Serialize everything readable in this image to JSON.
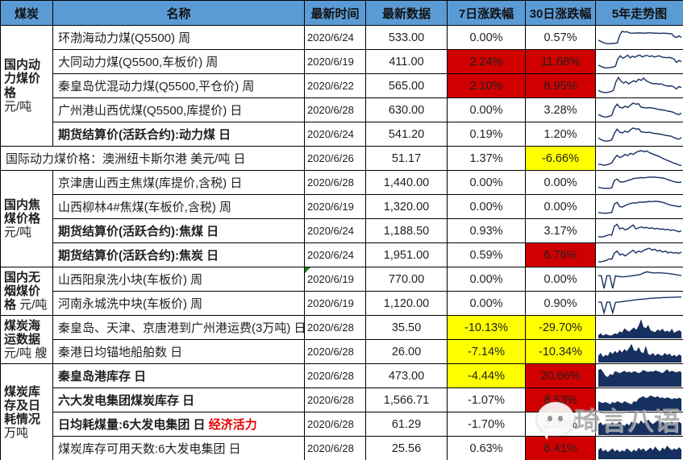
{
  "header": {
    "columns": [
      "煤炭",
      "名称",
      "最新时间",
      "最新数据",
      "7日涨跌幅",
      "30日涨跌幅",
      "5年走势图"
    ]
  },
  "colors": {
    "header_bg": "#5B9BD5",
    "red": "#D10000",
    "yellow": "#FFFF00",
    "spark": "#16305F",
    "note_red": "#E60000",
    "flag_green": "#1E7E1E",
    "watermark_gray": "#8C8C8C"
  },
  "categories": [
    {
      "title": "国内动力煤价格",
      "unit": "元/吨"
    },
    {
      "title": "国内焦煤价格",
      "unit": "元/吨"
    },
    {
      "title": "国内无烟煤价格",
      "unit": "元/吨"
    },
    {
      "title": "煤炭海运数据",
      "unit": "元/吨 艘"
    },
    {
      "title": "煤炭库存及日耗情况",
      "unit": "万吨"
    }
  ],
  "watermark": {
    "text": "琦言八语",
    "icon": "wechat-bubble-icon"
  },
  "rows": [
    {
      "name": "环渤海动力煤(Q5500) 周",
      "bold": false,
      "date": "2020/6/24",
      "value": "533.00",
      "d7": "0.00%",
      "d30": "0.57%",
      "spark": {
        "type": "line",
        "v": [
          0.38,
          0.32,
          0.26,
          0.22,
          0.2,
          0.2,
          0.21,
          0.22,
          0.24,
          0.62,
          0.84,
          0.8,
          0.82,
          0.76,
          0.74,
          0.74,
          0.75,
          0.76,
          0.75,
          0.74,
          0.75,
          0.76,
          0.76,
          0.75,
          0.74,
          0.74,
          0.73,
          0.74,
          0.74,
          0.73,
          0.72,
          0.7,
          0.56,
          0.52,
          0.6,
          0.52
        ]
      }
    },
    {
      "name": "大同动力煤(Q5500,车板价) 周",
      "bold": false,
      "date": "2020/6/19",
      "value": "411.00",
      "d7": "2.24%",
      "d7bg": "red",
      "d30": "11.68%",
      "d30bg": "red",
      "spark": {
        "type": "line",
        "v": [
          0.34,
          0.28,
          0.22,
          0.2,
          0.2,
          0.22,
          0.24,
          0.28,
          0.66,
          0.82,
          0.7,
          0.76,
          0.86,
          0.72,
          0.8,
          0.74,
          0.82,
          0.86,
          0.76,
          0.82,
          0.84,
          0.78,
          0.82,
          0.76,
          0.8,
          0.82,
          0.76,
          0.74,
          0.72,
          0.74,
          0.7,
          0.66,
          0.48,
          0.58,
          0.52
        ]
      }
    },
    {
      "name": "秦皇岛优混动力煤(Q5500,平仓价) 周",
      "bold": false,
      "date": "2020/6/22",
      "value": "565.00",
      "d7": "2.10%",
      "d7bg": "red",
      "d30": "8.95%",
      "d30bg": "red",
      "spark": {
        "type": "line",
        "v": [
          0.28,
          0.22,
          0.18,
          0.17,
          0.19,
          0.22,
          0.28,
          0.72,
          0.95,
          0.76,
          0.66,
          0.74,
          0.62,
          0.7,
          0.78,
          0.72,
          0.86,
          0.8,
          0.92,
          0.78,
          0.72,
          0.66,
          0.62,
          0.64,
          0.6,
          0.62,
          0.56,
          0.52,
          0.5,
          0.52,
          0.46,
          0.36,
          0.48,
          0.42
        ]
      }
    },
    {
      "name": "广州港山西优煤(Q5500,库提价) 日",
      "bold": false,
      "date": "2020/6/28",
      "value": "630.00",
      "d7": "0.00%",
      "d30": "3.28%",
      "spark": {
        "type": "line",
        "v": [
          0.28,
          0.22,
          0.17,
          0.16,
          0.19,
          0.24,
          0.62,
          0.82,
          0.66,
          0.62,
          0.72,
          0.64,
          0.78,
          0.88,
          0.82,
          0.84,
          0.66,
          0.64,
          0.62,
          0.64,
          0.62,
          0.6,
          0.56,
          0.54,
          0.52,
          0.5,
          0.46,
          0.44,
          0.4,
          0.32,
          0.28,
          0.36
        ]
      }
    },
    {
      "name": "期货结算价(活跃合约):动力煤 日",
      "bold": true,
      "date": "2020/6/24",
      "value": "541.20",
      "d7": "0.19%",
      "d30": "1.20%",
      "spark": {
        "type": "line",
        "v": [
          0.32,
          0.24,
          0.18,
          0.16,
          0.18,
          0.22,
          0.56,
          0.78,
          0.62,
          0.58,
          0.68,
          0.62,
          0.74,
          0.84,
          0.78,
          0.8,
          0.64,
          0.62,
          0.6,
          0.62,
          0.58,
          0.56,
          0.54,
          0.52,
          0.5,
          0.46,
          0.44,
          0.42,
          0.36,
          0.3,
          0.26,
          0.34
        ]
      }
    },
    {
      "name": "国际动力煤价格：澳洲纽卡斯尔港 美元/吨 日",
      "bold": false,
      "date": "2020/6/26",
      "value": "51.17",
      "d7": "1.37%",
      "d30": "-6.66%",
      "d30bg": "yellow",
      "spark": {
        "type": "line",
        "v": [
          0.22,
          0.2,
          0.16,
          0.18,
          0.22,
          0.28,
          0.52,
          0.68,
          0.56,
          0.62,
          0.72,
          0.66,
          0.78,
          0.72,
          0.82,
          0.88,
          0.92,
          0.86,
          0.9,
          0.82,
          0.76,
          0.7,
          0.66,
          0.6,
          0.52,
          0.46,
          0.4,
          0.34,
          0.28,
          0.24,
          0.18,
          0.14
        ]
      }
    },
    {
      "name": "京津唐山西主焦煤(库提价,含税) 日",
      "bold": false,
      "date": "2020/6/28",
      "value": "1,440.00",
      "d7": "0.00%",
      "d30": "0.00%",
      "spark": {
        "type": "line",
        "v": [
          0.28,
          0.24,
          0.22,
          0.22,
          0.22,
          0.24,
          0.62,
          0.7,
          0.56,
          0.54,
          0.57,
          0.62,
          0.66,
          0.72,
          0.74,
          0.75,
          0.77,
          0.76,
          0.78,
          0.8,
          0.79,
          0.8,
          0.78,
          0.77,
          0.75,
          0.72,
          0.66,
          0.62,
          0.57,
          0.54,
          0.52,
          0.54
        ]
      }
    },
    {
      "name": "山西柳林4#焦煤(车板价,含税) 周",
      "bold": false,
      "date": "2020/6/19",
      "value": "1,320.00",
      "d7": "0.00%",
      "d30": "0.00%",
      "spark": {
        "type": "line",
        "v": [
          0.22,
          0.2,
          0.18,
          0.18,
          0.2,
          0.22,
          0.66,
          0.74,
          0.52,
          0.5,
          0.57,
          0.64,
          0.68,
          0.72,
          0.7,
          0.74,
          0.76,
          0.75,
          0.77,
          0.79,
          0.78,
          0.8,
          0.79,
          0.77,
          0.74,
          0.7,
          0.64,
          0.6,
          0.57,
          0.55,
          0.52,
          0.54
        ]
      }
    },
    {
      "name": "期货结算价(活跃合约):焦煤 日",
      "bold": true,
      "date": "2020/6/24",
      "value": "1,188.50",
      "d7": "0.93%",
      "d30": "3.17%",
      "spark": {
        "type": "line",
        "v": [
          0.22,
          0.2,
          0.22,
          0.27,
          0.32,
          0.3,
          0.76,
          0.86,
          0.62,
          0.67,
          0.57,
          0.62,
          0.72,
          0.82,
          0.62,
          0.67,
          0.72,
          0.67,
          0.7,
          0.64,
          0.68,
          0.62,
          0.65,
          0.6,
          0.62,
          0.57,
          0.6,
          0.54,
          0.57,
          0.52,
          0.47,
          0.52
        ]
      }
    },
    {
      "name": "期货结算价(活跃合约):焦炭 日",
      "bold": true,
      "date": "2020/6/24",
      "value": "1,951.00",
      "d7": "0.59%",
      "d30": "6.76%",
      "d30bg": "red",
      "spark": {
        "type": "line",
        "v": [
          0.17,
          0.17,
          0.2,
          0.24,
          0.32,
          0.3,
          0.62,
          0.72,
          0.52,
          0.57,
          0.47,
          0.57,
          0.67,
          0.77,
          0.62,
          0.72,
          0.67,
          0.77,
          0.82,
          0.87,
          0.77,
          0.82,
          0.72,
          0.77,
          0.67,
          0.72,
          0.62,
          0.67,
          0.62,
          0.64,
          0.6,
          0.67
        ]
      }
    },
    {
      "name": "山西阳泉洗小块(车板价) 周",
      "bold": false,
      "date": "2020/6/19",
      "value": "770.00",
      "d7": "0.00%",
      "d30": "0.00%",
      "flag": true,
      "spark": {
        "type": "line",
        "v": [
          0.7,
          0.7,
          0.04,
          0.7,
          0.7,
          0.04,
          0.7,
          0.66,
          0.64,
          0.64,
          0.66,
          0.68,
          0.7,
          0.72,
          0.74,
          0.78,
          0.86,
          0.9,
          0.87,
          0.84,
          0.84,
          0.86,
          0.84,
          0.83,
          0.82,
          0.8,
          0.78,
          0.76,
          0.73,
          0.7
        ]
      }
    },
    {
      "name": "河南永城洗中块(车板价) 周",
      "bold": false,
      "date": "2020/6/19",
      "value": "1,120.00",
      "d7": "0.00%",
      "d30": "0.90%",
      "spark": {
        "type": "line",
        "v": [
          0.58,
          0.58,
          0.03,
          0.58,
          0.58,
          0.03,
          0.57,
          0.58,
          0.6,
          0.62,
          0.64,
          0.66,
          0.68,
          0.7,
          0.72,
          0.73,
          0.74,
          0.76,
          0.78,
          0.78,
          0.8,
          0.8,
          0.81,
          0.82,
          0.82,
          0.83,
          0.83,
          0.84,
          0.84,
          0.85
        ]
      }
    },
    {
      "name": "秦皇岛、天津、京唐港到广州港运费(3万吨) 日",
      "bold": false,
      "date": "2020/6/28",
      "value": "35.50",
      "d7": "-10.13%",
      "d7bg": "yellow",
      "d30": "-29.70%",
      "d30bg": "yellow",
      "spark": {
        "type": "area",
        "v": [
          0.12,
          0.22,
          0.1,
          0.18,
          0.14,
          0.1,
          0.14,
          0.22,
          0.18,
          0.32,
          0.26,
          0.48,
          0.38,
          0.3,
          0.42,
          0.52,
          0.4,
          0.62,
          0.95,
          0.55,
          0.48,
          0.66,
          0.38,
          0.32,
          0.28,
          0.42,
          0.34,
          0.46,
          0.3,
          0.36,
          0.28,
          0.46,
          0.24,
          0.32,
          0.38,
          0.3
        ]
      }
    },
    {
      "name": "秦港日均锚地船舶数 日",
      "bold": false,
      "date": "2020/6/28",
      "value": "26.00",
      "d7": "-7.14%",
      "d7bg": "yellow",
      "d30": "-10.34%",
      "d30bg": "yellow",
      "spark": {
        "type": "area",
        "v": [
          0.3,
          0.46,
          0.24,
          0.36,
          0.3,
          0.52,
          0.4,
          0.56,
          0.44,
          0.62,
          0.48,
          0.66,
          0.54,
          0.72,
          0.92,
          0.6,
          0.54,
          0.76,
          0.5,
          0.44,
          0.82,
          0.4,
          0.34,
          0.46,
          0.3,
          0.42,
          0.34,
          0.3,
          0.46,
          0.34,
          0.42,
          0.28,
          0.36,
          0.26,
          0.38,
          0.3
        ]
      }
    },
    {
      "name": "秦皇岛港库存 日",
      "bold": true,
      "date": "2020/6/28",
      "value": "473.00",
      "d7": "-4.44%",
      "d7bg": "yellow",
      "d30": "20.66%",
      "d30bg": "red",
      "spark": {
        "type": "area",
        "v": [
          0.82,
          0.88,
          0.72,
          0.52,
          0.46,
          0.62,
          0.56,
          0.76,
          0.72,
          0.66,
          0.72,
          0.78,
          0.7,
          0.74,
          0.68,
          0.76,
          0.72,
          0.66,
          0.72,
          0.82,
          0.76,
          0.72,
          0.76,
          0.73,
          0.8,
          0.76,
          0.72,
          0.66,
          0.76,
          0.86,
          0.72,
          0.78,
          0.74,
          0.7,
          0.76,
          0.72
        ]
      }
    },
    {
      "name": "六大发电集团煤炭库存 日",
      "bold": true,
      "date": "2020/6/28",
      "value": "1,566.71",
      "d7": "-1.07%",
      "d30": "8.53%",
      "d30bg": "red",
      "spark": {
        "type": "area",
        "v": [
          0.46,
          0.4,
          0.36,
          0.42,
          0.36,
          0.3,
          0.42,
          0.36,
          0.46,
          0.4,
          0.34,
          0.46,
          0.4,
          0.34,
          0.3,
          0.46,
          0.42,
          0.6,
          0.66,
          0.72,
          0.62,
          0.66,
          0.76,
          0.7,
          0.66,
          0.72,
          0.62,
          0.66,
          0.6,
          0.66,
          0.62,
          0.56,
          0.62,
          0.58,
          0.64,
          0.58
        ]
      }
    },
    {
      "name": "日均耗煤量:6大发电集团 日",
      "extra": "经济活力",
      "bold": true,
      "date": "2020/6/28",
      "value": "61.29",
      "d7": "-1.70%",
      "d30": "2.00%",
      "spark": {
        "type": "area",
        "v": [
          0.52,
          0.62,
          0.46,
          0.56,
          0.42,
          0.52,
          0.62,
          0.46,
          0.56,
          0.66,
          0.52,
          0.42,
          0.56,
          0.46,
          0.66,
          0.56,
          0.62,
          0.52,
          0.72,
          0.56,
          0.66,
          0.76,
          0.62,
          0.52,
          0.62,
          0.72,
          0.56,
          0.66,
          0.52,
          0.62,
          0.56,
          0.66,
          0.52,
          0.58,
          0.64,
          0.56
        ]
      }
    },
    {
      "name": "煤炭库存可用天数:6大发电集团 日",
      "bold": false,
      "date": "2020/6/28",
      "value": "25.56",
      "d7": "0.63%",
      "d30": "6.41%",
      "d30bg": "red",
      "spark": {
        "type": "area",
        "v": [
          0.42,
          0.56,
          0.36,
          0.46,
          0.32,
          0.42,
          0.52,
          0.36,
          0.46,
          0.32,
          0.42,
          0.36,
          0.52,
          0.42,
          0.32,
          0.46,
          0.36,
          0.56,
          0.42,
          0.52,
          0.36,
          0.46,
          0.56,
          0.42,
          0.62,
          0.46,
          0.36,
          0.56,
          0.46,
          0.66,
          0.52,
          0.42,
          0.52,
          0.44,
          0.58,
          0.46
        ]
      }
    }
  ]
}
